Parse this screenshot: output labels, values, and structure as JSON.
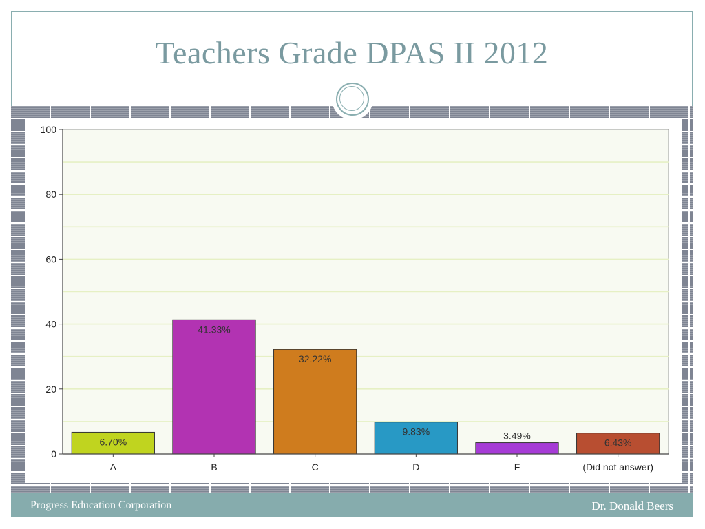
{
  "slide": {
    "title": "Teachers Grade DPAS II 2012",
    "footer_left": "Progress Education Corporation",
    "footer_right": "Dr. Donald Beers"
  },
  "colors": {
    "title": "#7a9aa0",
    "accent": "#86acad",
    "plot_background": "#f8faf2",
    "gridline": "#e6f0c4"
  },
  "chart_data": {
    "type": "bar",
    "categories": [
      "A",
      "B",
      "C",
      "D",
      "F",
      "(Did not answer)"
    ],
    "values": [
      6.7,
      41.33,
      32.22,
      9.83,
      3.49,
      6.43
    ],
    "value_labels": [
      "6.70%",
      "41.33%",
      "32.22%",
      "9.83%",
      "3.49%",
      "6.43%"
    ],
    "bar_colors": [
      "#c0d41f",
      "#b233b2",
      "#cf7c1e",
      "#2899c5",
      "#a63bd6",
      "#b84e31"
    ],
    "yticks": [
      "0",
      "20",
      "40",
      "60",
      "80",
      "100"
    ],
    "ylim": [
      0,
      100
    ],
    "grid": true,
    "title": "",
    "xlabel": "",
    "ylabel": ""
  }
}
